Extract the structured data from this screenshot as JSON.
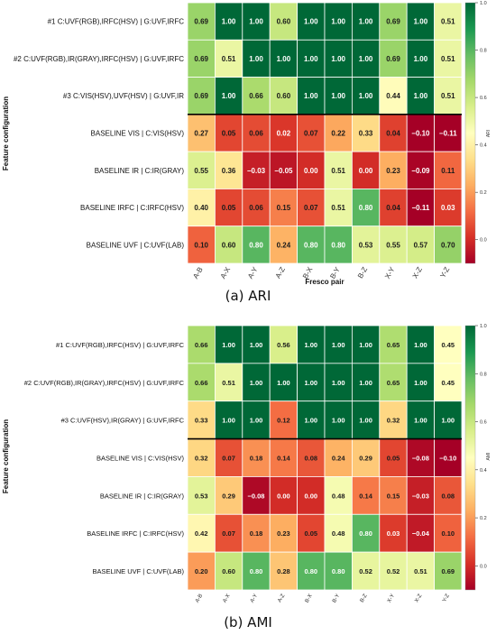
{
  "captions": [
    "(a) ARI",
    "(b) AMI"
  ],
  "chart_data": [
    {
      "type": "heatmap",
      "title": "",
      "xlabel": "Fresco pair",
      "ylabel": "Feature configuration",
      "colorbar_label": "ARI",
      "colorbar_ticks": [
        "1.0",
        "0.8",
        "0.6",
        "0.4",
        "0.2",
        "0.0"
      ],
      "colormap": [
        "#a50026",
        "#d73027",
        "#f46d43",
        "#fdae61",
        "#fee08b",
        "#ffffbf",
        "#d9ef8b",
        "#a6d96a",
        "#66bd63",
        "#1a9850",
        "#006837"
      ],
      "value_range": [
        -0.1,
        1.0
      ],
      "x_categories": [
        "A-B",
        "A-X",
        "A-Y",
        "A-Z",
        "B-X",
        "B-Y",
        "B-Z",
        "X-Y",
        "X-Z",
        "Y-Z"
      ],
      "y_categories": [
        "#1 C:UVF(RGB),IRFC(HSV) | G:UVF,IRFC",
        "#2 C:UVF(RGB),IR(GRAY),IRFC(HSV) | G:UVF,IRFC",
        "#3 C:VIS(HSV),UVF(HSV) | G:UVF,IR",
        "BASELINE VIS | C:VIS(HSV)",
        "BASELINE IR | C:IR(GRAY)",
        "BASELINE IRFC | C:IRFC(HSV)",
        "BASELINE UVF | C:UVF(LAB)"
      ],
      "values": [
        [
          "0.69",
          "1.00",
          "1.00",
          "0.60",
          "1.00",
          "1.00",
          "1.00",
          "0.69",
          "1.00",
          "0.51"
        ],
        [
          "0.69",
          "0.51",
          "1.00",
          "1.00",
          "1.00",
          "1.00",
          "1.00",
          "0.69",
          "1.00",
          "0.51"
        ],
        [
          "0.69",
          "1.00",
          "0.66",
          "0.60",
          "1.00",
          "1.00",
          "1.00",
          "0.44",
          "1.00",
          "0.51"
        ],
        [
          "0.27",
          "0.05",
          "0.06",
          "0.02",
          "0.07",
          "0.22",
          "0.33",
          "0.04",
          "−0.10",
          "−0.11"
        ],
        [
          "0.55",
          "0.36",
          "−0.03",
          "−0.05",
          "0.00",
          "0.51",
          "0.00",
          "0.23",
          "−0.09",
          "0.11"
        ],
        [
          "0.40",
          "0.05",
          "0.06",
          "0.15",
          "0.07",
          "0.51",
          "0.80",
          "0.04",
          "−0.11",
          "0.03"
        ],
        [
          "0.10",
          "0.60",
          "0.80",
          "0.24",
          "0.80",
          "0.80",
          "0.53",
          "0.55",
          "0.57",
          "0.70"
        ]
      ]
    },
    {
      "type": "heatmap",
      "title": "",
      "xlabel": "",
      "ylabel": "Feature configuration",
      "colorbar_label": "AMI",
      "colorbar_ticks": [
        "1.0",
        "0.8",
        "0.6",
        "0.4",
        "0.2",
        "0.0"
      ],
      "colormap": [
        "#a50026",
        "#d73027",
        "#f46d43",
        "#fdae61",
        "#fee08b",
        "#ffffbf",
        "#d9ef8b",
        "#a6d96a",
        "#66bd63",
        "#1a9850",
        "#006837"
      ],
      "value_range": [
        -0.1,
        1.0
      ],
      "x_categories": [
        "A-B",
        "A-X",
        "A-Y",
        "A-Z",
        "B-X",
        "B-Y",
        "B-Z",
        "X-Y",
        "X-Z",
        "Y-Z"
      ],
      "y_categories": [
        "#1 C:UVF(RGB),IRFC(HSV) | G:UVF,IRFC",
        "#2 C:UVF(RGB),IR(GRAY),IRFC(HSV) | G:UVF,IRFC",
        "#3 C:UVF(HSV),IR(GRAY) | G:UVF,IRFC",
        "BASELINE VIS | C:VIS(HSV)",
        "BASELINE IR | C:IR(GRAY)",
        "BASELINE IRFC | C:IRFC(HSV)",
        "BASELINE UVF | C:UVF(LAB)"
      ],
      "values": [
        [
          "0.66",
          "1.00",
          "1.00",
          "0.56",
          "1.00",
          "1.00",
          "1.00",
          "0.65",
          "1.00",
          "0.45"
        ],
        [
          "0.66",
          "0.51",
          "1.00",
          "1.00",
          "1.00",
          "1.00",
          "1.00",
          "0.65",
          "1.00",
          "0.45"
        ],
        [
          "0.33",
          "1.00",
          "1.00",
          "0.12",
          "1.00",
          "1.00",
          "1.00",
          "0.32",
          "1.00",
          "1.00"
        ],
        [
          "0.32",
          "0.07",
          "0.18",
          "0.14",
          "0.08",
          "0.24",
          "0.29",
          "0.05",
          "−0.08",
          "−0.10"
        ],
        [
          "0.53",
          "0.29",
          "−0.08",
          "0.00",
          "0.00",
          "0.48",
          "0.14",
          "0.15",
          "−0.03",
          "0.08"
        ],
        [
          "0.42",
          "0.07",
          "0.18",
          "0.23",
          "0.05",
          "0.48",
          "0.80",
          "0.03",
          "−0.04",
          "0.10"
        ],
        [
          "0.20",
          "0.60",
          "0.80",
          "0.28",
          "0.80",
          "0.80",
          "0.52",
          "0.52",
          "0.51",
          "0.69"
        ]
      ]
    }
  ]
}
